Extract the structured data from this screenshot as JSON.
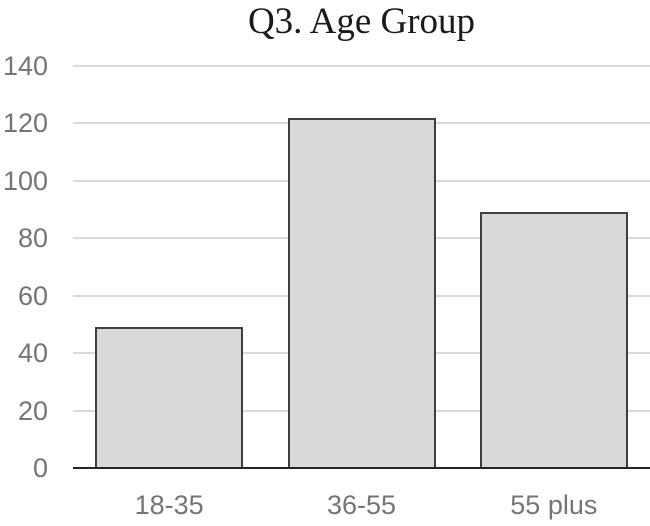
{
  "chart_data": {
    "type": "bar",
    "title": "Q3. Age Group",
    "categories": [
      "18-35",
      "36-55",
      "55 plus"
    ],
    "values": [
      49,
      122,
      89
    ],
    "xlabel": "",
    "ylabel": "",
    "ylim": [
      0,
      140
    ],
    "yticks": [
      0,
      20,
      40,
      60,
      80,
      100,
      120,
      140
    ],
    "grid": "horizontal",
    "legend": "none",
    "colors": {
      "title": "#1a1a1a",
      "tick_label": "#757575",
      "bar_fill": "#d9d9d9",
      "bar_border": "#404040",
      "gridline": "#d9d9d9",
      "axis_line": "#262626",
      "background": "#ffffff"
    }
  }
}
